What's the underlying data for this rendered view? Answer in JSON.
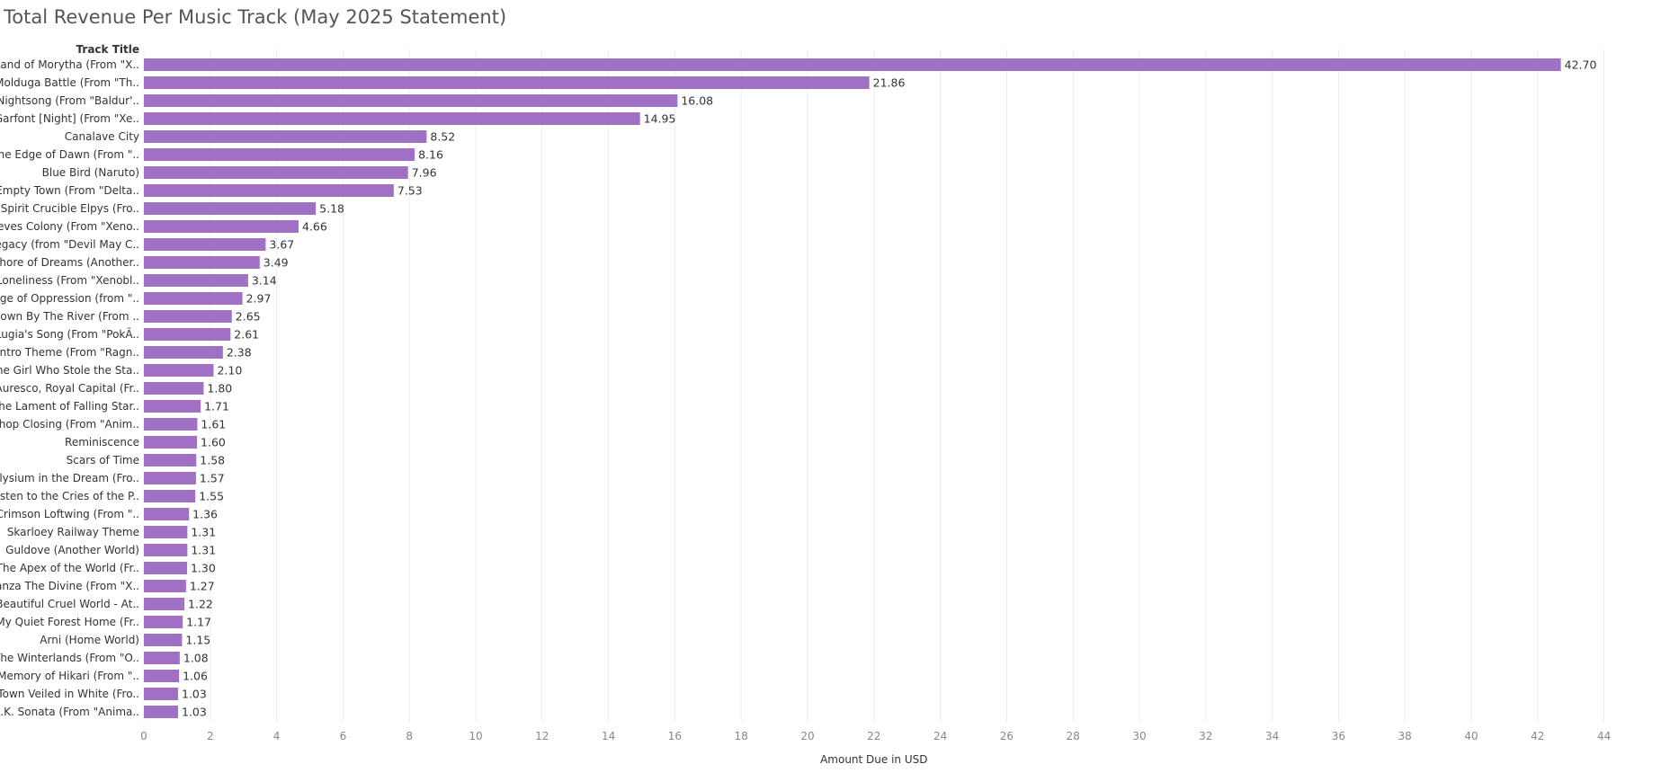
{
  "chart_data": {
    "type": "bar",
    "orientation": "horizontal",
    "title": "Total Revenue Per Music Track (May 2025 Statement)",
    "row_header": "Track Title",
    "xlabel": "Amount Due in USD",
    "xlim": [
      0,
      44
    ],
    "x_ticks": [
      0,
      2,
      4,
      6,
      8,
      10,
      12,
      14,
      16,
      18,
      20,
      22,
      24,
      26,
      28,
      30,
      32,
      34,
      36,
      38,
      40,
      42,
      44
    ],
    "grid": true,
    "bar_color": "#a070c4",
    "categories": [
      "Land of Morytha (From \"X..",
      "Molduga Battle (From \"Th..",
      "Nightsong (From \"Baldur'..",
      "Garfont [Night] (From \"Xe..",
      "Canalave City",
      "The Edge of Dawn (From \"..",
      "Blue Bird (Naruto)",
      "Empty Town (From \"Delta..",
      "Spirit Crucible Elpys (Fro..",
      "Keves Colony (From \"Xeno..",
      "Legacy (from \"Devil May C..",
      "Shore of Dreams (Another..",
      "Loneliness (From \"Xenobl..",
      "Age of Oppression (from \"..",
      "Down By The River (From ..",
      "Lugia's Song (From \"PokÃ..",
      "Intro Theme (From \"Ragn..",
      "The Girl Who Stole the Sta..",
      "Auresco, Royal Capital (Fr..",
      "The Lament of Falling Star..",
      "Shop Closing (From \"Anim..",
      "Reminiscence",
      "Scars of Time",
      "Elysium in the Dream (Fro..",
      "Listen to the Cries of the P..",
      "Crimson Loftwing (From \"..",
      "Skarloey Railway Theme",
      "Guldove (Another World)",
      "The Apex of the World (Fr..",
      "Zanza The Divine (From \"X..",
      "Beautiful Cruel World - At..",
      "My Quiet Forest Home (Fr..",
      "Arni (Home World)",
      "The Winterlands (From \"O..",
      "Memory of Hikari (From \"..",
      "Town Veiled in White (Fro..",
      "K.K. Sonata (From \"Anima.."
    ],
    "values": [
      42.7,
      21.86,
      16.08,
      14.95,
      8.52,
      8.16,
      7.96,
      7.53,
      5.18,
      4.66,
      3.67,
      3.49,
      3.14,
      2.97,
      2.65,
      2.61,
      2.38,
      2.1,
      1.8,
      1.71,
      1.61,
      1.6,
      1.58,
      1.57,
      1.55,
      1.36,
      1.31,
      1.31,
      1.3,
      1.27,
      1.22,
      1.17,
      1.15,
      1.08,
      1.06,
      1.03,
      1.03
    ],
    "value_labels": [
      "42.70",
      "21.86",
      "16.08",
      "14.95",
      "8.52",
      "8.16",
      "7.96",
      "7.53",
      "5.18",
      "4.66",
      "3.67",
      "3.49",
      "3.14",
      "2.97",
      "2.65",
      "2.61",
      "2.38",
      "2.10",
      "1.80",
      "1.71",
      "1.61",
      "1.60",
      "1.58",
      "1.57",
      "1.55",
      "1.36",
      "1.31",
      "1.31",
      "1.30",
      "1.27",
      "1.22",
      "1.17",
      "1.15",
      "1.08",
      "1.06",
      "1.03",
      "1.03"
    ]
  }
}
